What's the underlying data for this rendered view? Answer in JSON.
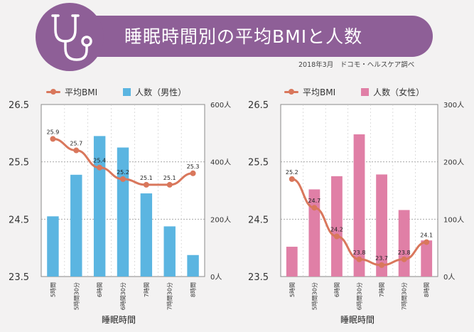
{
  "header": {
    "title": "睡眠時間別の平均BMIと人数",
    "source": "2018年3月　ドコモ・ヘルスケア調べ"
  },
  "colors": {
    "banner": "#8e5f97",
    "line": "#d9775c",
    "bar_male": "#5bb5e1",
    "bar_female": "#e07fa6"
  },
  "icons": {
    "logo": "stethoscope-icon"
  },
  "chart_data": [
    {
      "type": "bar",
      "legend": {
        "line_label": "平均BMI",
        "bar_label": "人数（男性）"
      },
      "categories": [
        "5時間",
        "5時間30分",
        "6時間",
        "6時間30分",
        "7時間",
        "7時間30分",
        "8時間"
      ],
      "xlabel": "睡眠時間",
      "y_left": {
        "ticks": [
          "26.5",
          "25.5",
          "24.5",
          "23.5"
        ],
        "range": [
          23.5,
          26.5
        ]
      },
      "y_right": {
        "ticks": [
          "600人",
          "400人",
          "200人",
          "0人"
        ],
        "range": [
          0,
          600
        ]
      },
      "bmi_labels": [
        "25.9",
        "25.7",
        "25.4",
        "25.2",
        "25.1",
        "25.1",
        "25.3"
      ],
      "bmi_values": [
        25.9,
        25.7,
        25.4,
        25.2,
        25.1,
        25.1,
        25.3
      ],
      "people": [
        210,
        355,
        490,
        450,
        290,
        175,
        75
      ],
      "grid": true
    },
    {
      "type": "bar",
      "legend": {
        "line_label": "平均BMI",
        "bar_label": "人数（女性）"
      },
      "categories": [
        "5時間",
        "5時間30分",
        "6時間",
        "6時間30分",
        "7時間",
        "7時間30分",
        "8時間"
      ],
      "xlabel": "睡眠時間",
      "y_left": {
        "ticks": [
          "26.5",
          "25.5",
          "24.5",
          "23.5"
        ],
        "range": [
          23.5,
          26.5
        ]
      },
      "y_right": {
        "ticks": [
          "300人",
          "200人",
          "100人",
          "0人"
        ],
        "range": [
          0,
          300
        ]
      },
      "bmi_labels": [
        "25.2",
        "24.7",
        "24.2",
        "23.8",
        "23.7",
        "23.8",
        "24.1"
      ],
      "bmi_values": [
        25.2,
        24.7,
        24.2,
        23.8,
        23.7,
        23.8,
        24.1
      ],
      "people": [
        52,
        152,
        175,
        248,
        178,
        116,
        63
      ],
      "grid": true
    }
  ]
}
